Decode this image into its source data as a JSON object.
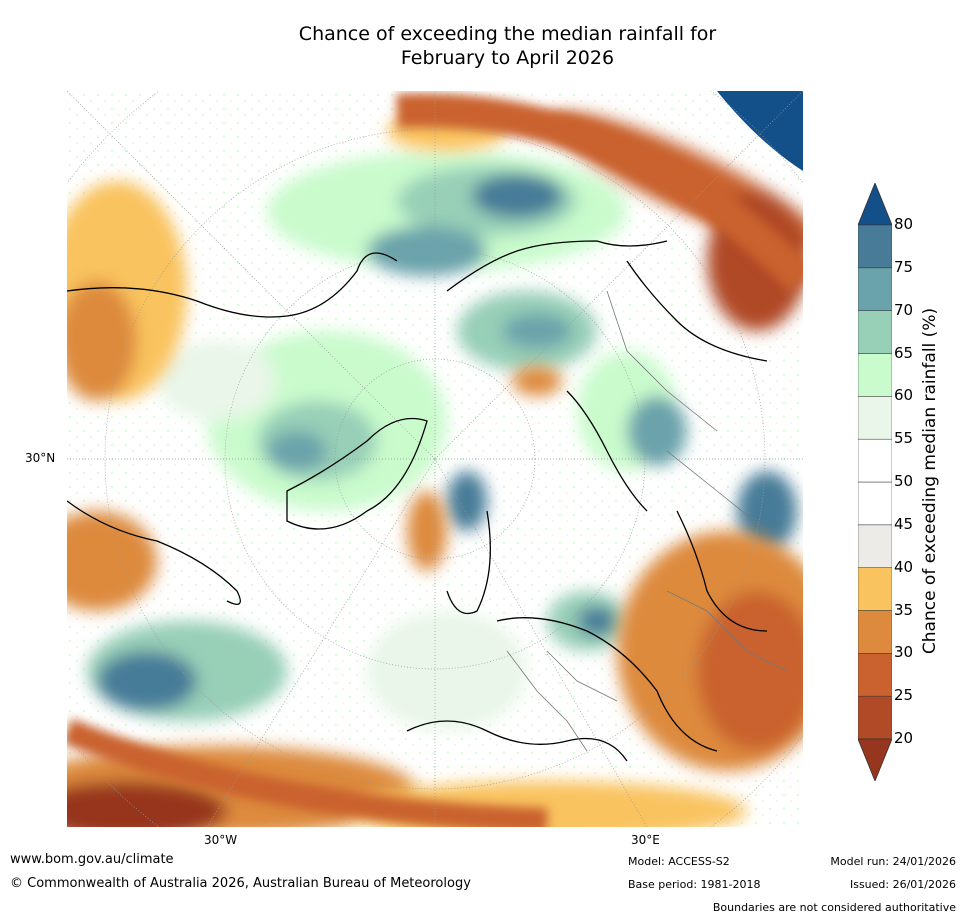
{
  "title_line1": "Chance of exceeding the median rainfall for",
  "title_line2": "February to April 2026",
  "lat_labels": [
    "30°N"
  ],
  "lon_labels": [
    "30°W",
    "30°E"
  ],
  "colorbar": {
    "label": "Chance of exceeding median rainfall (%)",
    "ticks": [
      "20",
      "25",
      "30",
      "35",
      "40",
      "45",
      "50",
      "55",
      "60",
      "65",
      "70",
      "75",
      "80"
    ],
    "bins": [
      {
        "range": "<20",
        "color": "#97361f"
      },
      {
        "range": "20-25",
        "color": "#b04a27"
      },
      {
        "range": "25-30",
        "color": "#c9622e"
      },
      {
        "range": "30-35",
        "color": "#dd8a3e"
      },
      {
        "range": "35-40",
        "color": "#f9c35f"
      },
      {
        "range": "40-45",
        "color": "#edebe8"
      },
      {
        "range": "45-50",
        "color": "#ffffff"
      },
      {
        "range": "50-55",
        "color": "#ffffff"
      },
      {
        "range": "55-60",
        "color": "#e9f6e9"
      },
      {
        "range": "60-65",
        "color": "#c9fbcc"
      },
      {
        "range": "65-70",
        "color": "#97cfb7"
      },
      {
        "range": "70-75",
        "color": "#6aa3ab"
      },
      {
        "range": "75-80",
        "color": "#477b98"
      },
      {
        "range": ">80",
        "color": "#134f88"
      }
    ]
  },
  "footer": {
    "website": "www.bom.gov.au/climate",
    "copyright": "© Commonwealth of Australia 2026, Australian Bureau of Meteorology",
    "model": "Model: ACCESS-S2",
    "base_period": "Base period: 1981-2018",
    "model_run": "Model run: 24/01/2026",
    "issued": "Issued: 26/01/2026",
    "disclaimer": "Boundaries are not considered authoritative"
  }
}
